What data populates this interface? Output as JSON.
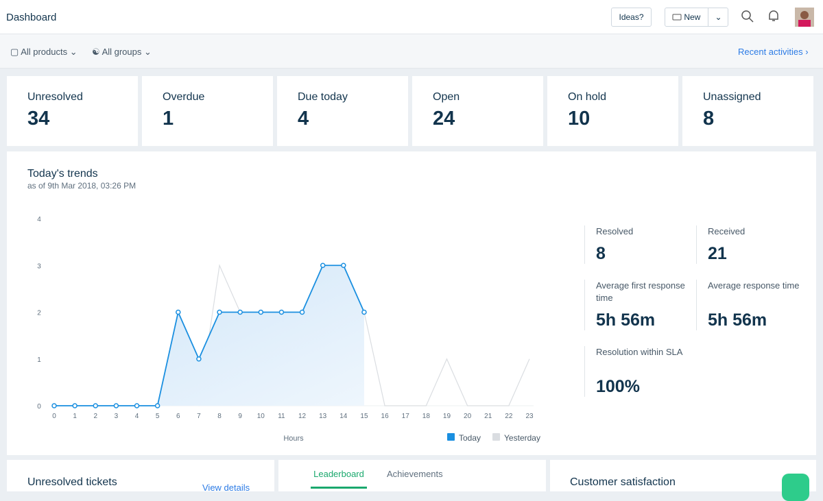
{
  "header": {
    "title": "Dashboard",
    "ideas": "Ideas?",
    "new": "New"
  },
  "filters": {
    "products": "All products",
    "groups": "All groups",
    "recent": "Recent activities"
  },
  "stats": [
    {
      "label": "Unresolved",
      "value": 34
    },
    {
      "label": "Overdue",
      "value": 1
    },
    {
      "label": "Due today",
      "value": 4
    },
    {
      "label": "Open",
      "value": 24
    },
    {
      "label": "On hold",
      "value": 10
    },
    {
      "label": "Unassigned",
      "value": 8
    }
  ],
  "trends": {
    "title": "Today's trends",
    "subtitle": "as of 9th Mar 2018, 03:26 PM",
    "metrics": [
      {
        "label": "Resolved",
        "value": "8"
      },
      {
        "label": "Received",
        "value": "21"
      },
      {
        "label": "Average first response time",
        "value": "5h 56m"
      },
      {
        "label": "Average response time",
        "value": "5h 56m"
      },
      {
        "label": "Resolution within SLA",
        "value": "100%"
      }
    ]
  },
  "chart_data": {
    "type": "line",
    "x_label": "Hours",
    "x": [
      0,
      1,
      2,
      3,
      4,
      5,
      6,
      7,
      8,
      9,
      10,
      11,
      12,
      13,
      14,
      15,
      16,
      17,
      18,
      19,
      20,
      21,
      22,
      23
    ],
    "xlim": [
      0,
      23
    ],
    "xticks": [
      0,
      1,
      2,
      3,
      4,
      5,
      6,
      7,
      8,
      9,
      10,
      11,
      12,
      13,
      14,
      15,
      16,
      17,
      18,
      19,
      20,
      21,
      22,
      23
    ],
    "ylim": [
      0,
      4
    ],
    "yticks": [
      0,
      1,
      2,
      3,
      4
    ],
    "series": [
      {
        "name": "Today",
        "color": "#1a8fe0",
        "values": [
          0,
          0,
          0,
          0,
          0,
          0,
          2,
          1,
          2,
          2,
          2,
          2,
          2,
          3,
          3,
          2,
          null,
          null,
          null,
          null,
          null,
          null,
          null,
          null
        ]
      },
      {
        "name": "Yesterday",
        "color": "#dadde1",
        "values": [
          0,
          0,
          0,
          0,
          0,
          0,
          2,
          0,
          3,
          2,
          2,
          1,
          2,
          1,
          2,
          2,
          0,
          0,
          0,
          1,
          0,
          0,
          0,
          1
        ]
      }
    ]
  },
  "bottom": {
    "unresolved": "Unresolved tickets",
    "view": "View details",
    "tabs": [
      "Leaderboard",
      "Achievements"
    ],
    "csat": "Customer satisfaction"
  }
}
